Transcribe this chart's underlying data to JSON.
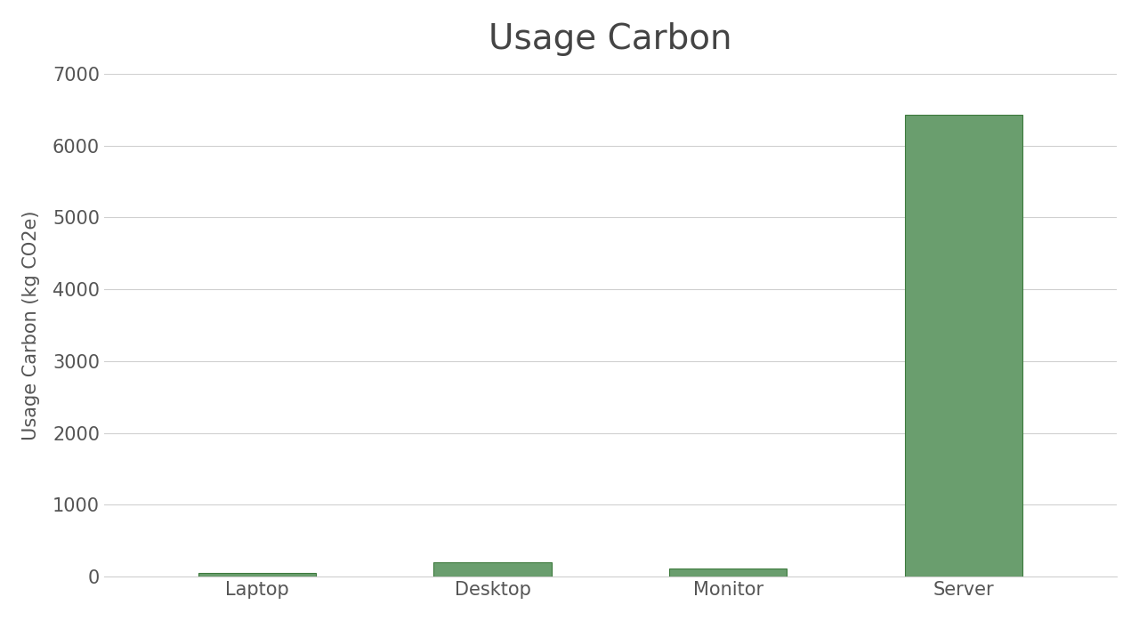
{
  "title": "Usage Carbon",
  "categories": [
    "Laptop",
    "Desktop",
    "Monitor",
    "Server"
  ],
  "values": [
    50,
    200,
    110,
    6430
  ],
  "bar_color": "#6a9e6e",
  "bar_edge_color": "#3d7a3d",
  "ylabel": "Usage Carbon (kg CO2e)",
  "ylim": [
    0,
    7000
  ],
  "yticks": [
    0,
    1000,
    2000,
    3000,
    4000,
    5000,
    6000,
    7000
  ],
  "background_color": "#ffffff",
  "grid_color": "#d0d0d0",
  "title_fontsize": 28,
  "axis_label_fontsize": 15,
  "tick_fontsize": 15,
  "bar_width": 0.5
}
